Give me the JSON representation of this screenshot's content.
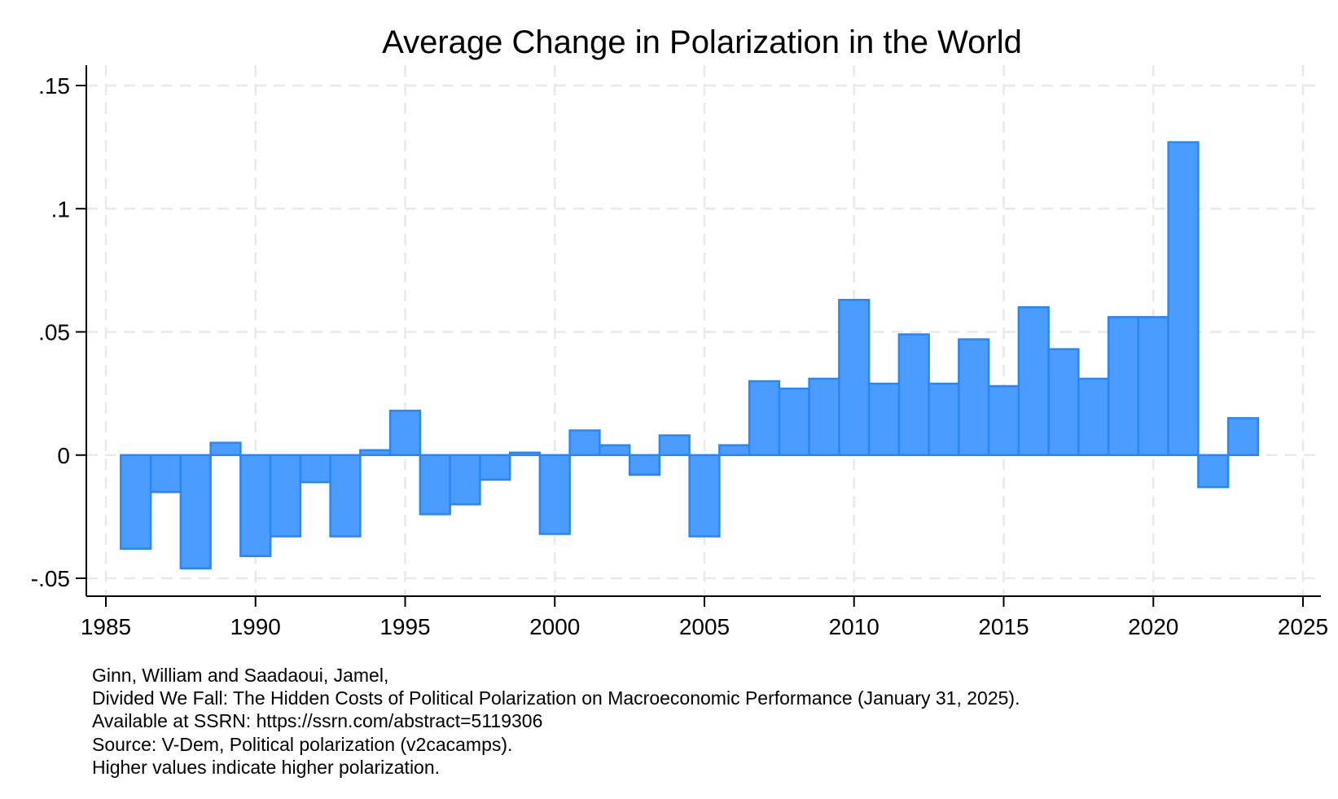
{
  "chart_data": {
    "type": "bar",
    "title": "Average Change in Polarization in the World",
    "xlabel": "",
    "ylabel": "",
    "x": [
      1986,
      1987,
      1988,
      1989,
      1990,
      1991,
      1992,
      1993,
      1994,
      1995,
      1996,
      1997,
      1998,
      1999,
      2000,
      2001,
      2002,
      2003,
      2004,
      2005,
      2006,
      2007,
      2008,
      2009,
      2010,
      2011,
      2012,
      2013,
      2014,
      2015,
      2016,
      2017,
      2018,
      2019,
      2020,
      2021,
      2022,
      2023
    ],
    "values": [
      -0.038,
      -0.015,
      -0.046,
      0.005,
      -0.041,
      -0.033,
      -0.011,
      -0.033,
      0.002,
      0.018,
      -0.024,
      -0.02,
      -0.01,
      0.001,
      -0.032,
      0.01,
      0.004,
      -0.008,
      0.008,
      -0.033,
      0.004,
      0.03,
      0.027,
      0.031,
      0.063,
      0.029,
      0.049,
      0.029,
      0.047,
      0.028,
      0.06,
      0.043,
      0.031,
      0.056,
      0.056,
      0.127,
      -0.013,
      0.015
    ],
    "xlim": [
      1985,
      2025
    ],
    "ylim": [
      -0.05,
      0.15
    ],
    "x_ticks": [
      {
        "value": 1985,
        "label": "1985"
      },
      {
        "value": 1990,
        "label": "1990"
      },
      {
        "value": 1995,
        "label": "1995"
      },
      {
        "value": 2000,
        "label": "2000"
      },
      {
        "value": 2005,
        "label": "2005"
      },
      {
        "value": 2010,
        "label": "2010"
      },
      {
        "value": 2015,
        "label": "2015"
      },
      {
        "value": 2020,
        "label": "2020"
      },
      {
        "value": 2025,
        "label": "2025"
      }
    ],
    "y_ticks": [
      {
        "value": -0.05,
        "label": "-.05"
      },
      {
        "value": 0,
        "label": "0"
      },
      {
        "value": 0.05,
        "label": ".05"
      },
      {
        "value": 0.1,
        "label": ".1"
      },
      {
        "value": 0.15,
        "label": ".15"
      }
    ],
    "grid": true,
    "bar_color": "#4a9cff",
    "bar_edge_color": "#2a86f5",
    "notes": [
      "Ginn, William and Saadaoui, Jamel,",
      "Divided We Fall: The Hidden Costs of Political Polarization on Macroeconomic Performance (January 31, 2025).",
      "Available at SSRN: https://ssrn.com/abstract=5119306",
      "Source: V-Dem, Political polarization (v2cacamps).",
      "Higher values indicate higher polarization."
    ]
  }
}
